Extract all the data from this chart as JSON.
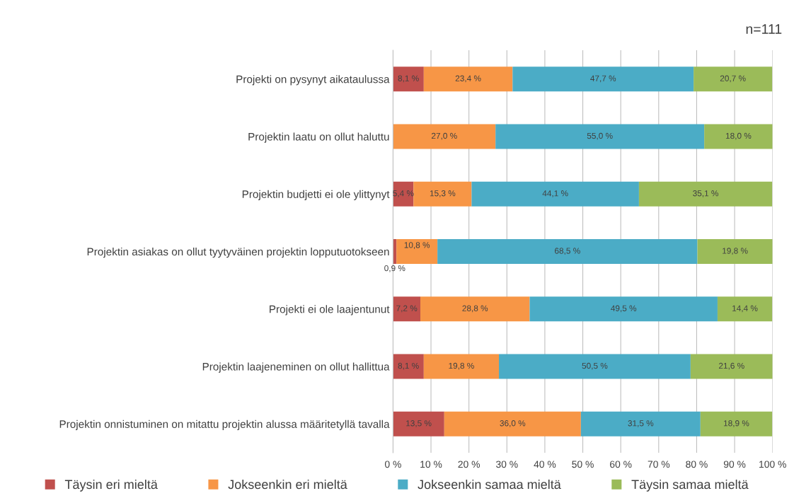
{
  "chart_data": {
    "type": "bar",
    "orientation": "horizontal",
    "stacked": true,
    "categories": [
      "Projekti on pysynyt aikataulussa",
      "Projektin laatu on ollut haluttu",
      "Projektin budjetti ei ole ylittynyt",
      "Projektin asiakas on ollut tyytyväinen projektin lopputuotokseen",
      "Projekti ei ole laajentunut",
      "Projektin laajeneminen on ollut hallittua",
      "Projektin onnistuminen on mitattu projektin alussa määritetyllä tavalla"
    ],
    "series": [
      {
        "name": "Täysin eri mieltä",
        "color": "#c0504d",
        "values": [
          8.1,
          null,
          5.4,
          0.9,
          7.2,
          8.1,
          13.5
        ],
        "value_labels": [
          "8,1 %",
          null,
          "5,4 %",
          "0,9 %",
          "7,2 %",
          "8,1 %",
          "13,5 %"
        ]
      },
      {
        "name": "Jokseenkin eri mieltä",
        "color": "#f79646",
        "values": [
          23.4,
          27.0,
          15.3,
          10.8,
          28.8,
          19.8,
          36.0
        ],
        "value_labels": [
          "23,4 %",
          "27,0 %",
          "15,3 %",
          "10,8 %",
          "28,8 %",
          "19,8 %",
          "36,0 %"
        ]
      },
      {
        "name": "Jokseenkin samaa mieltä",
        "color": "#4bacc6",
        "values": [
          47.7,
          55.0,
          44.1,
          68.5,
          49.5,
          50.5,
          31.5
        ],
        "value_labels": [
          "47,7 %",
          "55,0 %",
          "44,1 %",
          "68,5 %",
          "49,5 %",
          "50,5 %",
          "31,5 %"
        ]
      },
      {
        "name": "Täysin samaa mieltä",
        "color": "#9bbb59",
        "values": [
          20.7,
          18.0,
          35.1,
          19.8,
          14.4,
          21.6,
          18.9
        ],
        "value_labels": [
          "20,7 %",
          "18,0 %",
          "35,1 %",
          "19,8 %",
          "14,4 %",
          "21,6 %",
          "18,9 %"
        ]
      }
    ],
    "xlim": [
      0,
      100
    ],
    "xticks": [
      {
        "value": 0,
        "label": "0 %"
      },
      {
        "value": 10,
        "label": "10 %"
      },
      {
        "value": 20,
        "label": "20 %"
      },
      {
        "value": 30,
        "label": "30 %"
      },
      {
        "value": 40,
        "label": "40 %"
      },
      {
        "value": 50,
        "label": "50 %"
      },
      {
        "value": 60,
        "label": "60 %"
      },
      {
        "value": 70,
        "label": "70 %"
      },
      {
        "value": 80,
        "label": "80 %"
      },
      {
        "value": 90,
        "label": "90 %"
      },
      {
        "value": 100,
        "label": "100 %"
      }
    ],
    "grid": "x",
    "legend": "bottom",
    "annotations": [
      "n=111"
    ]
  }
}
